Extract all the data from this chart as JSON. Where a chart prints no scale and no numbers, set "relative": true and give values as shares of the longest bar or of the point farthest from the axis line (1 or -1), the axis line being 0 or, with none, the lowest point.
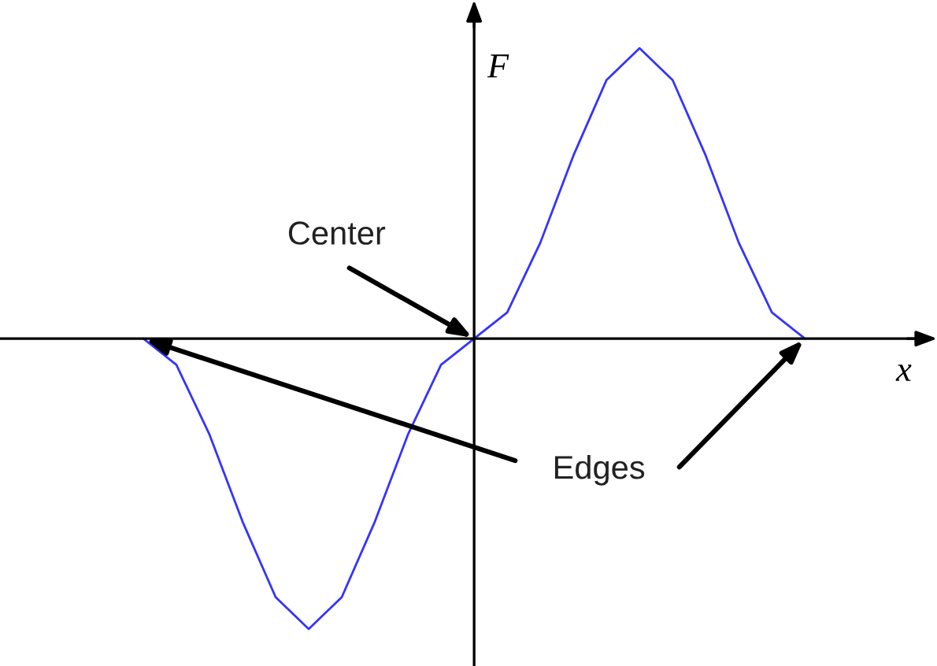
{
  "chart_data": {
    "type": "line",
    "relative": true,
    "xlabel": "x",
    "ylabel": "F",
    "categories": [
      null,
      null,
      null,
      null,
      null,
      null,
      null,
      null,
      null,
      null,
      null,
      null,
      null,
      null,
      null,
      null,
      null,
      null,
      null,
      null,
      null
    ],
    "series": [
      {
        "color": "#3333ff",
        "values": [
          0,
          -0.09,
          -0.33,
          -0.63,
          -0.89,
          -1.0,
          -0.89,
          -0.63,
          -0.33,
          -0.09,
          0,
          0.09,
          0.33,
          0.63,
          0.89,
          1.0,
          0.89,
          0.63,
          0.33,
          0.09,
          0
        ]
      }
    ],
    "annotations": [
      "Center",
      "Edges"
    ],
    "legend": false,
    "marker": "none",
    "line_style": "solid"
  }
}
